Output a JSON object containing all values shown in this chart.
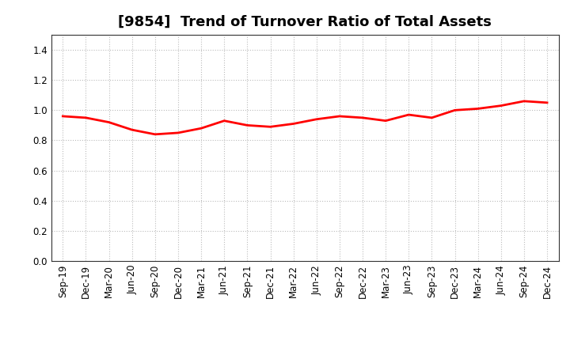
{
  "title": "[9854]  Trend of Turnover Ratio of Total Assets",
  "x_labels": [
    "Sep-19",
    "Dec-19",
    "Mar-20",
    "Jun-20",
    "Sep-20",
    "Dec-20",
    "Mar-21",
    "Jun-21",
    "Sep-21",
    "Dec-21",
    "Mar-22",
    "Jun-22",
    "Sep-22",
    "Dec-22",
    "Mar-23",
    "Jun-23",
    "Sep-23",
    "Dec-23",
    "Mar-24",
    "Jun-24",
    "Sep-24",
    "Dec-24"
  ],
  "y_values": [
    0.96,
    0.95,
    0.92,
    0.87,
    0.84,
    0.85,
    0.88,
    0.93,
    0.9,
    0.89,
    0.91,
    0.94,
    0.96,
    0.95,
    0.93,
    0.97,
    0.95,
    1.0,
    1.01,
    1.03,
    1.06,
    1.05
  ],
  "line_color": "#FF0000",
  "line_width": 2.0,
  "ylim": [
    0.0,
    1.5
  ],
  "yticks": [
    0.0,
    0.2,
    0.4,
    0.6,
    0.8,
    1.0,
    1.2,
    1.4
  ],
  "background_color": "#ffffff",
  "grid_color": "#bbbbbb",
  "title_fontsize": 13,
  "tick_fontsize": 8.5
}
